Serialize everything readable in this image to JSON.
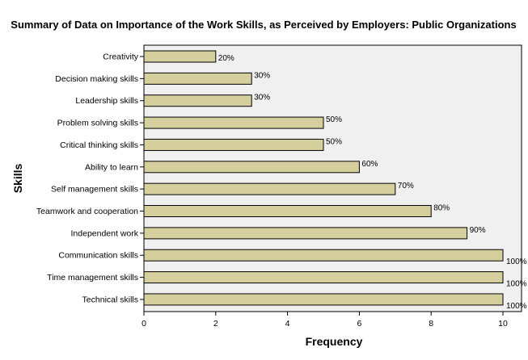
{
  "chart_data": {
    "type": "bar",
    "orientation": "horizontal",
    "title": "Summary of Data on Importance of the Work Skills, as Perceived by Employers: Public Organizations",
    "xlabel": "Frequency",
    "ylabel": "Skills",
    "xlim": [
      0,
      10.5
    ],
    "xticks": [
      0,
      2,
      4,
      6,
      8,
      10
    ],
    "categories": [
      "Creativity",
      "Decision making skills",
      "Leadership skills",
      "Problem solving skills",
      "Critical thinking skills",
      "Ability to learn",
      "Self management skills",
      "Teamwork and cooperation",
      "Independent work",
      "Communication skills",
      "Time management skills",
      "Technical skills"
    ],
    "values": [
      2,
      3,
      3,
      5,
      5,
      6,
      7,
      8,
      9,
      10,
      10,
      10
    ],
    "data_labels": [
      "20%",
      "30%",
      "30%",
      "50%",
      "50%",
      "60%",
      "70%",
      "80%",
      "90%",
      "100%",
      "100%",
      "100%"
    ],
    "grid": false,
    "legend": "none",
    "colors": {
      "bar_fill": "#d5cf9d",
      "bar_stroke": "#000000",
      "plot_background": "#f0f0f0"
    }
  }
}
